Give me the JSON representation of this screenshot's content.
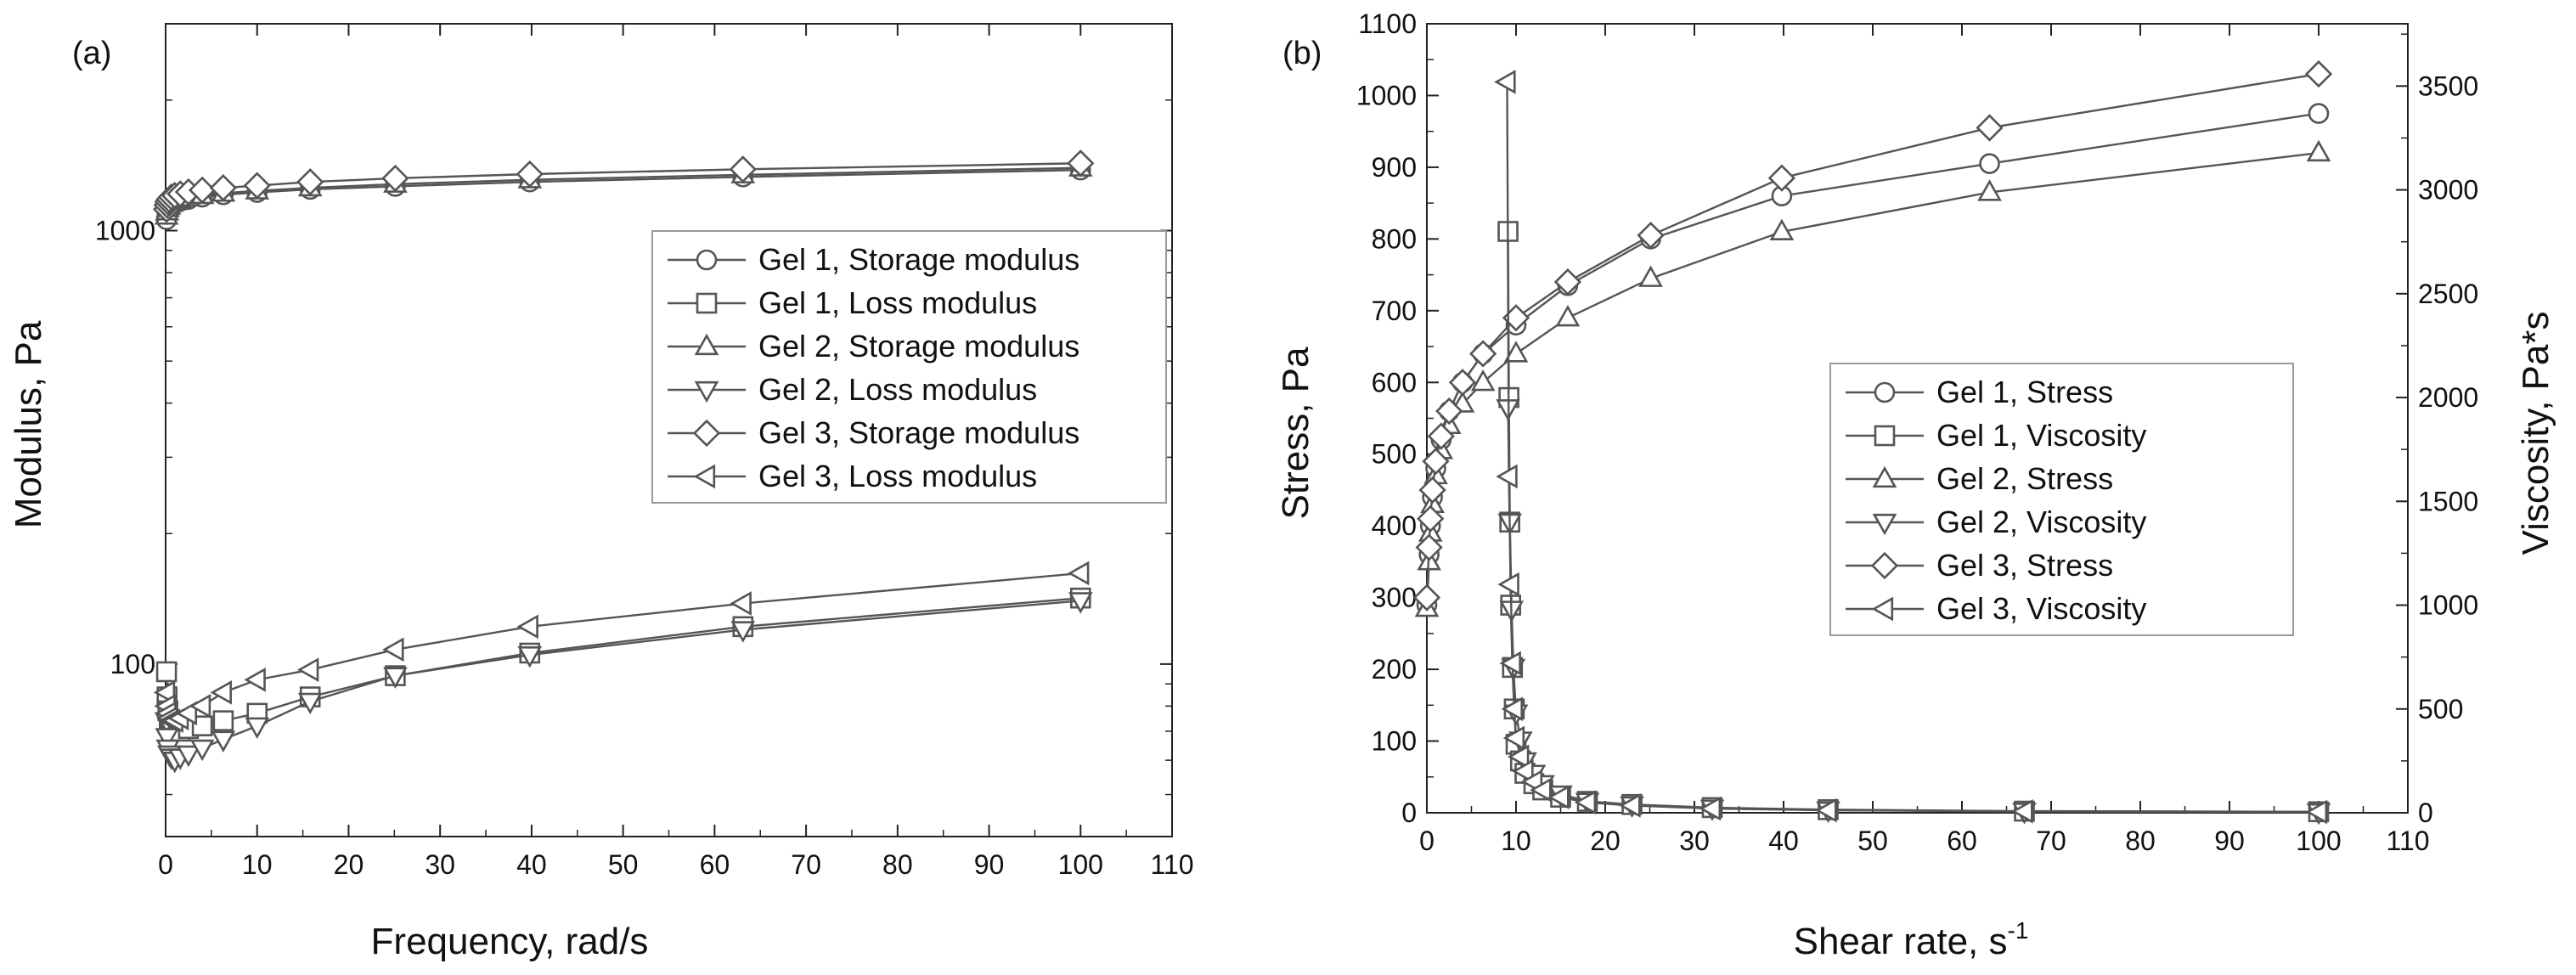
{
  "chart_data": [
    {
      "type": "scatter",
      "panel_label": "(a)",
      "xlabel": "Frequency, rad/s",
      "ylabel": "Modulus, Pa",
      "y_scale": "log",
      "xlim": [
        0,
        110
      ],
      "ylim": [
        40,
        3000
      ],
      "x_ticks": [
        "0",
        "10",
        "20",
        "30",
        "40",
        "50",
        "60",
        "70",
        "80",
        "90",
        "100",
        "110"
      ],
      "y_ticks": [
        "100",
        "1000"
      ],
      "legend_position": "right",
      "colors": {
        "line": "#555555",
        "axis": "#222222",
        "marker_fill": "#ffffff"
      },
      "series": [
        {
          "name": "Gel 1, Storage modulus",
          "marker": "circle",
          "x": [
            0.1,
            0.16,
            0.25,
            0.4,
            0.63,
            1,
            1.6,
            2.5,
            4,
            6.3,
            10,
            15.8,
            25.1,
            39.8,
            63.1,
            100
          ],
          "y": [
            1060,
            1090,
            1110,
            1130,
            1145,
            1160,
            1170,
            1180,
            1195,
            1210,
            1225,
            1245,
            1265,
            1295,
            1330,
            1380
          ]
        },
        {
          "name": "Gel 1, Loss modulus",
          "marker": "square",
          "x": [
            0.1,
            0.16,
            0.25,
            0.4,
            0.63,
            1,
            1.6,
            2.5,
            4,
            6.3,
            10,
            15.8,
            25.1,
            39.8,
            63.1,
            100
          ],
          "y": [
            96,
            84,
            78,
            74,
            72,
            71,
            70,
            71,
            72,
            74,
            77,
            84,
            94,
            106,
            122,
            142
          ]
        },
        {
          "name": "Gel 2, Storage modulus",
          "marker": "triangle-up",
          "x": [
            0.1,
            0.16,
            0.25,
            0.4,
            0.63,
            1,
            1.6,
            2.5,
            4,
            6.3,
            10,
            15.8,
            25.1,
            39.8,
            63.1,
            100
          ],
          "y": [
            1080,
            1105,
            1125,
            1140,
            1155,
            1165,
            1178,
            1190,
            1205,
            1220,
            1235,
            1255,
            1280,
            1310,
            1345,
            1395
          ]
        },
        {
          "name": "Gel 2, Loss modulus",
          "marker": "triangle-down",
          "x": [
            0.1,
            0.16,
            0.25,
            0.4,
            0.63,
            1,
            1.6,
            2.5,
            4,
            6.3,
            10,
            15.8,
            25.1,
            39.8,
            63.1,
            100
          ],
          "y": [
            74,
            68,
            64,
            62,
            61,
            60,
            61,
            62,
            64,
            67,
            72,
            82,
            94,
            105,
            120,
            140
          ]
        },
        {
          "name": "Gel 3, Storage modulus",
          "marker": "diamond",
          "x": [
            0.1,
            0.16,
            0.25,
            0.4,
            0.63,
            1,
            1.6,
            2.5,
            4,
            6.3,
            10,
            15.8,
            25.1,
            39.8,
            63.1,
            100
          ],
          "y": [
            1120,
            1145,
            1165,
            1180,
            1195,
            1205,
            1215,
            1228,
            1240,
            1255,
            1270,
            1295,
            1320,
            1350,
            1385,
            1430
          ]
        },
        {
          "name": "Gel 3, Loss modulus",
          "marker": "triangle-left",
          "x": [
            0.1,
            0.16,
            0.25,
            0.4,
            0.63,
            1,
            1.6,
            2.5,
            4,
            6.3,
            10,
            15.8,
            25.1,
            39.8,
            63.1,
            100
          ],
          "y": [
            86,
            80,
            77,
            75,
            74,
            74,
            75,
            77,
            80,
            86,
            92,
            97,
            108,
            122,
            138,
            162
          ]
        }
      ]
    },
    {
      "type": "line",
      "panel_label": "(b)",
      "xlabel": "Shear rate, s",
      "xlabel_superscript": "-1",
      "ylabel": "Stress, Pa",
      "y2label": "Viscosity, Pa*s",
      "xlim": [
        0,
        110
      ],
      "ylim": [
        0,
        1100
      ],
      "y2lim": [
        0,
        3800
      ],
      "x_ticks": [
        "0",
        "10",
        "20",
        "30",
        "40",
        "50",
        "60",
        "70",
        "80",
        "90",
        "100",
        "110"
      ],
      "y_ticks": [
        "0",
        "100",
        "200",
        "300",
        "400",
        "500",
        "600",
        "700",
        "800",
        "900",
        "1000",
        "1100"
      ],
      "y2_ticks": [
        "0",
        "500",
        "1000",
        "1500",
        "2000",
        "2500",
        "3000",
        "3500"
      ],
      "legend_position": "center-right",
      "colors": {
        "line": "#555555",
        "axis": "#222222",
        "marker_fill": "#ffffff"
      },
      "series": [
        {
          "name": "Gel 1,   Stress",
          "axis": "left",
          "marker": "circle",
          "x": [
            0,
            0.25,
            0.4,
            0.63,
            1,
            1.6,
            2.5,
            4,
            6.3,
            10,
            15.8,
            25.1,
            39.8,
            63.1,
            100
          ],
          "y": [
            290,
            360,
            400,
            440,
            480,
            520,
            560,
            600,
            640,
            680,
            735,
            800,
            860,
            905,
            975
          ]
        },
        {
          "name": "Gel 1,  Viscosity",
          "axis": "right",
          "marker": "square",
          "x": [
            9.1,
            9.2,
            9.3,
            9.4,
            9.6,
            9.8,
            10,
            10.5,
            11,
            12,
            13,
            15,
            18,
            23,
            32,
            45,
            67,
            100
          ],
          "y": [
            2800,
            2000,
            1400,
            1000,
            700,
            500,
            330,
            250,
            190,
            140,
            110,
            75,
            55,
            40,
            25,
            15,
            8,
            5
          ]
        },
        {
          "name": "Gel 2,   Stress",
          "axis": "left",
          "marker": "triangle-up",
          "x": [
            0,
            0.25,
            0.4,
            0.63,
            1,
            1.6,
            2.5,
            4,
            6.3,
            10,
            15.8,
            25.1,
            39.8,
            63.1,
            100
          ],
          "y": [
            285,
            350,
            390,
            430,
            470,
            505,
            540,
            570,
            600,
            640,
            690,
            745,
            810,
            865,
            920
          ]
        },
        {
          "name": "Gel 2,  Viscosity",
          "axis": "right",
          "marker": "triangle-down",
          "x": [
            9.1,
            9.3,
            9.5,
            9.7,
            10,
            10.5,
            11,
            12,
            13,
            15,
            18,
            23,
            32,
            45,
            67,
            100
          ],
          "y": [
            1950,
            1400,
            980,
            700,
            480,
            350,
            250,
            190,
            140,
            90,
            55,
            38,
            22,
            13,
            7,
            4
          ]
        },
        {
          "name": "Gel 3,   Stress",
          "axis": "left",
          "marker": "diamond",
          "x": [
            0,
            0.25,
            0.4,
            0.63,
            1,
            1.6,
            2.5,
            4,
            6.3,
            10,
            15.8,
            25.1,
            39.8,
            63.1,
            100
          ],
          "y": [
            300,
            370,
            410,
            450,
            490,
            525,
            560,
            600,
            640,
            690,
            740,
            805,
            885,
            955,
            1030
          ]
        },
        {
          "name": "Gel 3,    Viscosity",
          "axis": "right",
          "marker": "triangle-left",
          "x": [
            9,
            9.2,
            9.4,
            9.6,
            9.8,
            10,
            10.5,
            11,
            12,
            13,
            15,
            18,
            23,
            32,
            45,
            67,
            100
          ],
          "y": [
            3520,
            1620,
            1100,
            720,
            500,
            360,
            270,
            200,
            150,
            110,
            75,
            50,
            35,
            20,
            12,
            7,
            4
          ]
        }
      ]
    }
  ]
}
